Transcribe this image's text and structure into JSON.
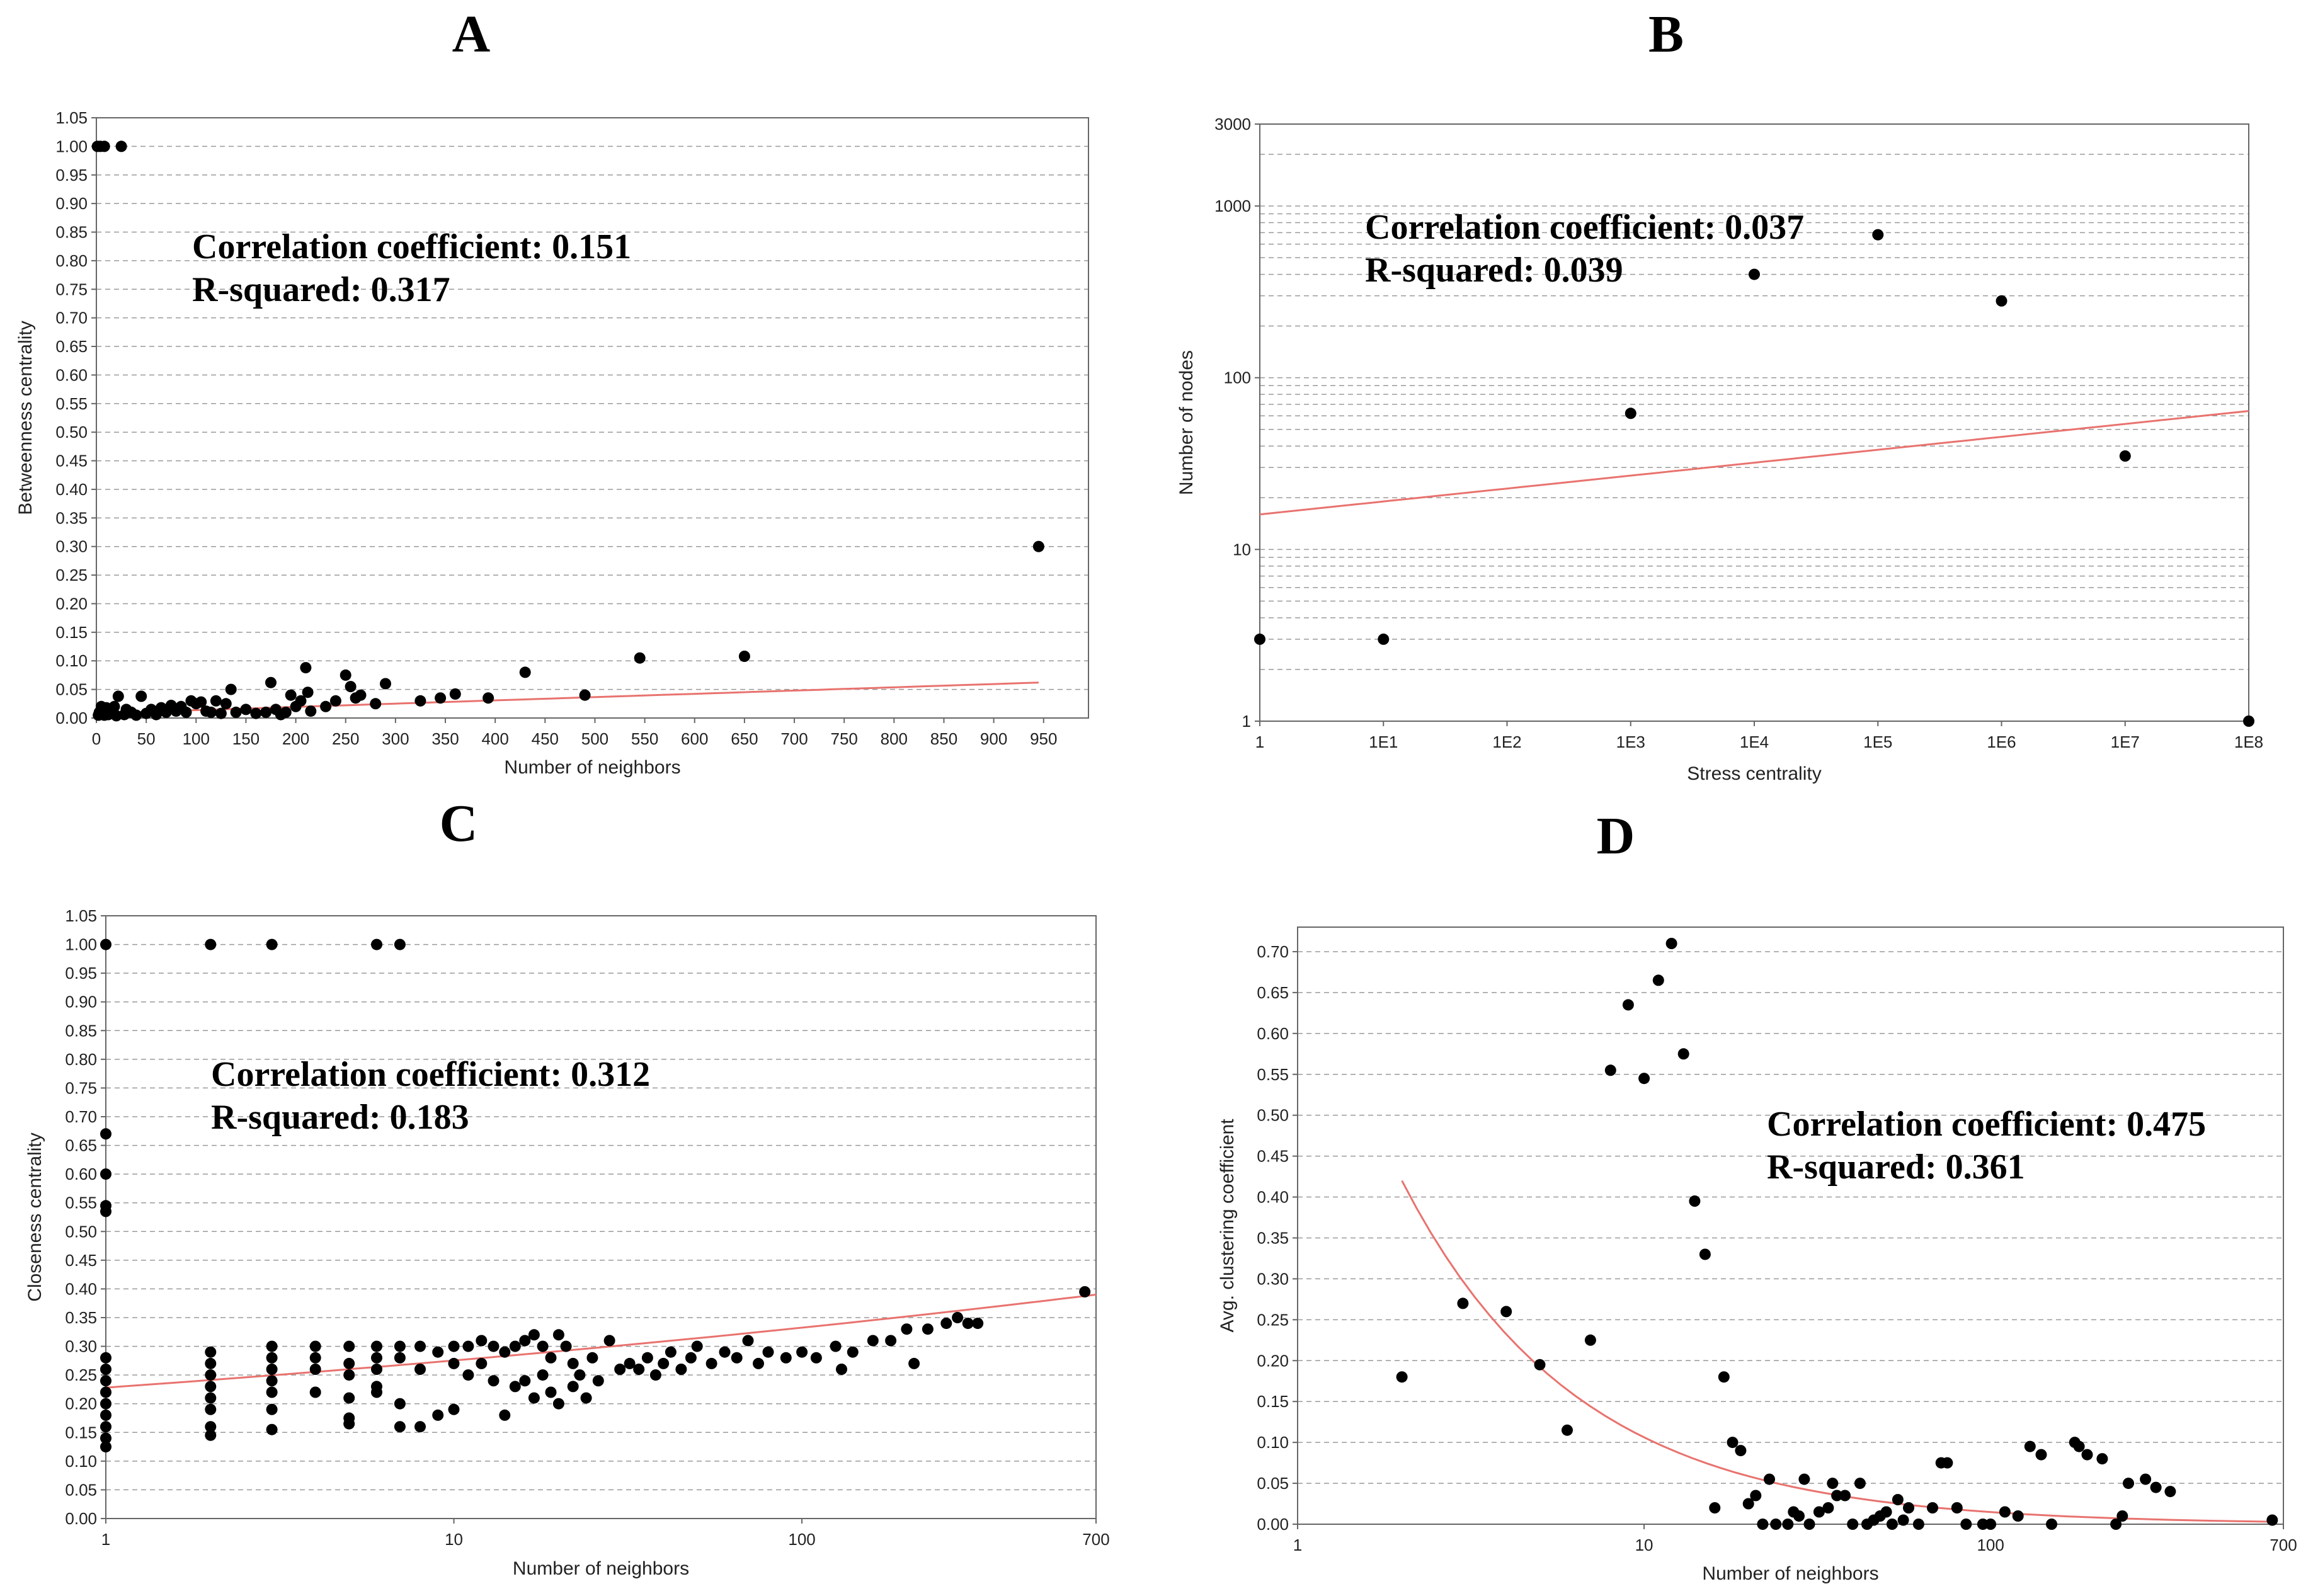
{
  "chart_data": [
    {
      "id": "A",
      "panel_label": "A",
      "type": "scatter",
      "xlabel": "Number of neighbors",
      "ylabel": "Betweenness centrality",
      "xscale": "linear",
      "yscale": "linear",
      "xlim": [
        0,
        995
      ],
      "ylim": [
        0,
        1.05
      ],
      "xticks": [
        0,
        50,
        100,
        150,
        200,
        250,
        300,
        350,
        400,
        450,
        500,
        550,
        600,
        650,
        700,
        750,
        800,
        850,
        900,
        950
      ],
      "xtick_labels": [
        "0",
        "50",
        "100",
        "150",
        "200",
        "250",
        "300",
        "350",
        "400",
        "450",
        "500",
        "550",
        "600",
        "650",
        "700",
        "750",
        "800",
        "850",
        "900",
        "950"
      ],
      "yticks": [
        0,
        0.05,
        0.1,
        0.15,
        0.2,
        0.25,
        0.3,
        0.35,
        0.4,
        0.45,
        0.5,
        0.55,
        0.6,
        0.65,
        0.7,
        0.75,
        0.8,
        0.85,
        0.9,
        0.95,
        1.0,
        1.05
      ],
      "ytick_labels": [
        "0.00",
        "0.05",
        "0.10",
        "0.15",
        "0.20",
        "0.25",
        "0.30",
        "0.35",
        "0.40",
        "0.45",
        "0.50",
        "0.55",
        "0.60",
        "0.65",
        "0.70",
        "0.75",
        "0.80",
        "0.85",
        "0.90",
        "0.95",
        "1.00",
        "1.05"
      ],
      "grid": "horizontal-dashed",
      "annotation": [
        "Correlation coefficient: 0.151",
        "R-squared: 0.317"
      ],
      "trend": {
        "type": "linear",
        "x": [
          0,
          945
        ],
        "y": [
          0.008,
          0.062
        ]
      },
      "points": [
        [
          1,
          1.0
        ],
        [
          4,
          1.0
        ],
        [
          8,
          1.0
        ],
        [
          25,
          1.0
        ],
        [
          945,
          0.3
        ],
        [
          650,
          0.108
        ],
        [
          545,
          0.105
        ],
        [
          430,
          0.08
        ],
        [
          490,
          0.04
        ],
        [
          393,
          0.035
        ],
        [
          360,
          0.042
        ],
        [
          345,
          0.035
        ],
        [
          325,
          0.03
        ],
        [
          290,
          0.06
        ],
        [
          280,
          0.025
        ],
        [
          260,
          0.035
        ],
        [
          255,
          0.055
        ],
        [
          250,
          0.075
        ],
        [
          210,
          0.088
        ],
        [
          212,
          0.045
        ],
        [
          205,
          0.03
        ],
        [
          200,
          0.02
        ],
        [
          195,
          0.04
        ],
        [
          175,
          0.062
        ],
        [
          180,
          0.015
        ],
        [
          170,
          0.01
        ],
        [
          150,
          0.015
        ],
        [
          135,
          0.05
        ],
        [
          130,
          0.025
        ],
        [
          120,
          0.03
        ],
        [
          115,
          0.01
        ],
        [
          105,
          0.028
        ],
        [
          100,
          0.025
        ],
        [
          95,
          0.03
        ],
        [
          85,
          0.02
        ],
        [
          75,
          0.022
        ],
        [
          65,
          0.018
        ],
        [
          55,
          0.015
        ],
        [
          45,
          0.038
        ],
        [
          35,
          0.01
        ],
        [
          30,
          0.015
        ],
        [
          22,
          0.038
        ],
        [
          18,
          0.02
        ],
        [
          15,
          0.012
        ],
        [
          10,
          0.018
        ],
        [
          5,
          0.02
        ],
        [
          3,
          0.01
        ],
        [
          2,
          0.005
        ],
        [
          8,
          0.005
        ],
        [
          12,
          0.006
        ],
        [
          20,
          0.004
        ],
        [
          28,
          0.006
        ],
        [
          40,
          0.005
        ],
        [
          50,
          0.008
        ],
        [
          60,
          0.006
        ],
        [
          70,
          0.01
        ],
        [
          80,
          0.012
        ],
        [
          90,
          0.01
        ],
        [
          110,
          0.012
        ],
        [
          125,
          0.008
        ],
        [
          140,
          0.01
        ],
        [
          160,
          0.008
        ],
        [
          185,
          0.006
        ],
        [
          190,
          0.01
        ],
        [
          215,
          0.012
        ],
        [
          230,
          0.02
        ],
        [
          240,
          0.03
        ],
        [
          265,
          0.04
        ]
      ]
    },
    {
      "id": "B",
      "panel_label": "B",
      "type": "scatter",
      "xlabel": "Stress centrality",
      "ylabel": "Number of nodes",
      "xscale": "log",
      "yscale": "log",
      "xlim": [
        1,
        100000000
      ],
      "ylim": [
        1,
        3000
      ],
      "xticks": [
        1,
        10,
        100,
        1000,
        10000,
        100000,
        1000000,
        10000000,
        100000000
      ],
      "xtick_labels": [
        "1",
        "1E1",
        "1E2",
        "1E3",
        "1E4",
        "1E5",
        "1E6",
        "1E7",
        "1E8"
      ],
      "yticks": [
        1,
        10,
        100,
        1000,
        3000
      ],
      "ytick_labels": [
        "1",
        "10",
        "100",
        "1000",
        "3000"
      ],
      "grid": "horizontal-dashed-log-minor",
      "annotation": [
        "Correlation coefficient: 0.037",
        "R-squared: 0.039"
      ],
      "trend": {
        "type": "power",
        "x": [
          1,
          100000000
        ],
        "y": [
          16,
          64
        ]
      },
      "points": [
        [
          1,
          3
        ],
        [
          10,
          3
        ],
        [
          1000,
          62
        ],
        [
          10000,
          400
        ],
        [
          100000,
          680
        ],
        [
          1000000,
          280
        ],
        [
          10000000,
          35
        ],
        [
          100000000,
          1
        ]
      ]
    },
    {
      "id": "C",
      "panel_label": "C",
      "type": "scatter",
      "xlabel": "Number of neighbors",
      "ylabel": "Closeness centrality",
      "xscale": "log",
      "yscale": "linear",
      "xlim": [
        1,
        700
      ],
      "ylim": [
        0,
        1.05
      ],
      "xticks": [
        1,
        10,
        100,
        700
      ],
      "xtick_labels": [
        "1",
        "10",
        "100",
        "700"
      ],
      "yticks": [
        0,
        0.05,
        0.1,
        0.15,
        0.2,
        0.25,
        0.3,
        0.35,
        0.4,
        0.45,
        0.5,
        0.55,
        0.6,
        0.65,
        0.7,
        0.75,
        0.8,
        0.85,
        0.9,
        0.95,
        1.0,
        1.05
      ],
      "ytick_labels": [
        "0.00",
        "0.05",
        "0.10",
        "0.15",
        "0.20",
        "0.25",
        "0.30",
        "0.35",
        "0.40",
        "0.45",
        "0.50",
        "0.55",
        "0.60",
        "0.65",
        "0.70",
        "0.75",
        "0.80",
        "0.85",
        "0.90",
        "0.95",
        "1.00",
        "1.05"
      ],
      "grid": "horizontal-dashed",
      "annotation": [
        "Correlation coefficient: 0.312",
        "R-squared: 0.183"
      ],
      "trend": {
        "type": "power",
        "x": [
          1,
          700
        ],
        "y": [
          0.228,
          0.39
        ]
      },
      "points": [
        [
          1,
          1.0
        ],
        [
          2,
          1.0
        ],
        [
          3,
          1.0
        ],
        [
          6,
          1.0
        ],
        [
          7,
          1.0
        ],
        [
          1,
          0.67
        ],
        [
          1,
          0.6
        ],
        [
          1,
          0.545
        ],
        [
          1,
          0.535
        ],
        [
          1,
          0.28
        ],
        [
          1,
          0.26
        ],
        [
          1,
          0.24
        ],
        [
          1,
          0.22
        ],
        [
          1,
          0.2
        ],
        [
          1,
          0.18
        ],
        [
          1,
          0.16
        ],
        [
          1,
          0.14
        ],
        [
          1,
          0.125
        ],
        [
          2,
          0.29
        ],
        [
          2,
          0.27
        ],
        [
          2,
          0.25
        ],
        [
          2,
          0.23
        ],
        [
          2,
          0.21
        ],
        [
          2,
          0.19
        ],
        [
          2,
          0.16
        ],
        [
          2,
          0.145
        ],
        [
          3,
          0.3
        ],
        [
          3,
          0.28
        ],
        [
          3,
          0.26
        ],
        [
          3,
          0.24
        ],
        [
          3,
          0.22
        ],
        [
          3,
          0.19
        ],
        [
          3,
          0.155
        ],
        [
          4,
          0.3
        ],
        [
          4,
          0.28
        ],
        [
          4,
          0.26
        ],
        [
          4,
          0.22
        ],
        [
          5,
          0.3
        ],
        [
          5,
          0.27
        ],
        [
          5,
          0.25
        ],
        [
          5,
          0.21
        ],
        [
          5,
          0.175
        ],
        [
          5,
          0.165
        ],
        [
          6,
          0.3
        ],
        [
          6,
          0.28
        ],
        [
          6,
          0.26
        ],
        [
          6,
          0.23
        ],
        [
          6,
          0.22
        ],
        [
          7,
          0.3
        ],
        [
          7,
          0.28
        ],
        [
          7,
          0.2
        ],
        [
          7,
          0.16
        ],
        [
          8,
          0.3
        ],
        [
          8,
          0.26
        ],
        [
          8,
          0.16
        ],
        [
          9,
          0.29
        ],
        [
          9,
          0.18
        ],
        [
          10,
          0.3
        ],
        [
          10,
          0.27
        ],
        [
          10,
          0.19
        ],
        [
          11,
          0.3
        ],
        [
          11,
          0.25
        ],
        [
          12,
          0.31
        ],
        [
          12,
          0.27
        ],
        [
          13,
          0.3
        ],
        [
          13,
          0.24
        ],
        [
          14,
          0.29
        ],
        [
          14,
          0.18
        ],
        [
          15,
          0.3
        ],
        [
          15,
          0.23
        ],
        [
          16,
          0.31
        ],
        [
          16,
          0.24
        ],
        [
          17,
          0.32
        ],
        [
          17,
          0.21
        ],
        [
          18,
          0.3
        ],
        [
          18,
          0.25
        ],
        [
          19,
          0.28
        ],
        [
          19,
          0.22
        ],
        [
          20,
          0.32
        ],
        [
          20,
          0.2
        ],
        [
          21,
          0.3
        ],
        [
          22,
          0.27
        ],
        [
          22,
          0.23
        ],
        [
          23,
          0.25
        ],
        [
          24,
          0.21
        ],
        [
          25,
          0.28
        ],
        [
          26,
          0.24
        ],
        [
          28,
          0.31
        ],
        [
          30,
          0.26
        ],
        [
          32,
          0.27
        ],
        [
          34,
          0.26
        ],
        [
          36,
          0.28
        ],
        [
          38,
          0.25
        ],
        [
          40,
          0.27
        ],
        [
          42,
          0.29
        ],
        [
          45,
          0.26
        ],
        [
          48,
          0.28
        ],
        [
          50,
          0.3
        ],
        [
          55,
          0.27
        ],
        [
          60,
          0.29
        ],
        [
          65,
          0.28
        ],
        [
          70,
          0.31
        ],
        [
          75,
          0.27
        ],
        [
          80,
          0.29
        ],
        [
          90,
          0.28
        ],
        [
          100,
          0.29
        ],
        [
          110,
          0.28
        ],
        [
          125,
          0.3
        ],
        [
          130,
          0.26
        ],
        [
          140,
          0.29
        ],
        [
          160,
          0.31
        ],
        [
          180,
          0.31
        ],
        [
          200,
          0.33
        ],
        [
          210,
          0.27
        ],
        [
          230,
          0.33
        ],
        [
          260,
          0.34
        ],
        [
          280,
          0.35
        ],
        [
          300,
          0.34
        ],
        [
          320,
          0.34
        ],
        [
          650,
          0.395
        ]
      ]
    },
    {
      "id": "D",
      "panel_label": "D",
      "type": "scatter",
      "xlabel": "Number of neighbors",
      "ylabel": "Avg. clustering coefficient",
      "xscale": "log",
      "yscale": "linear",
      "xlim": [
        1,
        700
      ],
      "ylim": [
        0,
        0.73
      ],
      "xticks": [
        1,
        10,
        100,
        700
      ],
      "xtick_labels": [
        "1",
        "10",
        "100",
        "700"
      ],
      "yticks": [
        0,
        0.05,
        0.1,
        0.15,
        0.2,
        0.25,
        0.3,
        0.35,
        0.4,
        0.45,
        0.5,
        0.55,
        0.6,
        0.65,
        0.7
      ],
      "ytick_labels": [
        "0.00",
        "0.05",
        "0.10",
        "0.15",
        "0.20",
        "0.25",
        "0.30",
        "0.35",
        "0.40",
        "0.45",
        "0.50",
        "0.55",
        "0.60",
        "0.65",
        "0.70"
      ],
      "grid": "horizontal-dashed",
      "annotation": [
        "Correlation coefficient: 0.475",
        "R-squared: 0.361"
      ],
      "trend": {
        "type": "power",
        "x": [
          2,
          650
        ],
        "y": [
          0.42,
          0.003
        ]
      },
      "points": [
        [
          2,
          0.18
        ],
        [
          3,
          0.27
        ],
        [
          4,
          0.26
        ],
        [
          5,
          0.195
        ],
        [
          6,
          0.115
        ],
        [
          7,
          0.225
        ],
        [
          8,
          0.555
        ],
        [
          9,
          0.635
        ],
        [
          10,
          0.545
        ],
        [
          11,
          0.665
        ],
        [
          12,
          0.71
        ],
        [
          13,
          0.575
        ],
        [
          14,
          0.395
        ],
        [
          15,
          0.33
        ],
        [
          16,
          0.02
        ],
        [
          17,
          0.18
        ],
        [
          18,
          0.1
        ],
        [
          19,
          0.09
        ],
        [
          20,
          0.025
        ],
        [
          21,
          0.035
        ],
        [
          22,
          0.0
        ],
        [
          23,
          0.055
        ],
        [
          24,
          0.0
        ],
        [
          26,
          0.0
        ],
        [
          27,
          0.015
        ],
        [
          28,
          0.01
        ],
        [
          29,
          0.055
        ],
        [
          30,
          0.0
        ],
        [
          32,
          0.015
        ],
        [
          34,
          0.02
        ],
        [
          35,
          0.05
        ],
        [
          36,
          0.035
        ],
        [
          38,
          0.035
        ],
        [
          40,
          0.0
        ],
        [
          42,
          0.05
        ],
        [
          44,
          0.0
        ],
        [
          46,
          0.005
        ],
        [
          48,
          0.01
        ],
        [
          50,
          0.015
        ],
        [
          52,
          0.0
        ],
        [
          54,
          0.03
        ],
        [
          56,
          0.005
        ],
        [
          58,
          0.02
        ],
        [
          62,
          0.0
        ],
        [
          68,
          0.02
        ],
        [
          72,
          0.075
        ],
        [
          75,
          0.075
        ],
        [
          80,
          0.02
        ],
        [
          85,
          0.0
        ],
        [
          95,
          0.0
        ],
        [
          100,
          0.0
        ],
        [
          110,
          0.015
        ],
        [
          120,
          0.01
        ],
        [
          130,
          0.095
        ],
        [
          140,
          0.085
        ],
        [
          150,
          0.0
        ],
        [
          175,
          0.1
        ],
        [
          180,
          0.095
        ],
        [
          190,
          0.085
        ],
        [
          210,
          0.08
        ],
        [
          230,
          0.0
        ],
        [
          240,
          0.01
        ],
        [
          250,
          0.05
        ],
        [
          280,
          0.055
        ],
        [
          300,
          0.045
        ],
        [
          330,
          0.04
        ],
        [
          650,
          0.005
        ]
      ]
    }
  ]
}
